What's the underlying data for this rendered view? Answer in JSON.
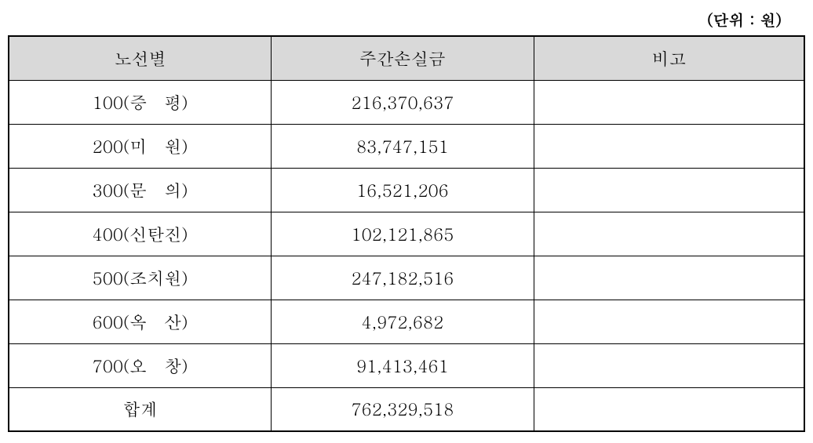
{
  "unit_label": "(단위 : 원)",
  "table": {
    "columns": [
      "노선별",
      "주간손실금",
      "비고"
    ],
    "header_bg": "#d9d9d9",
    "border_color": "#000000",
    "rows": [
      {
        "route": "100(증   평)",
        "loss": "216,370,637",
        "remark": ""
      },
      {
        "route": "200(미   원)",
        "loss": "83,747,151",
        "remark": ""
      },
      {
        "route": "300(문   의)",
        "loss": "16,521,206",
        "remark": ""
      },
      {
        "route": "400(신탄진)",
        "loss": "102,121,865",
        "remark": ""
      },
      {
        "route": "500(조치원)",
        "loss": "247,182,516",
        "remark": ""
      },
      {
        "route": "600(옥   산)",
        "loss": "4,972,682",
        "remark": ""
      },
      {
        "route": "700(오   창)",
        "loss": "91,413,461",
        "remark": ""
      },
      {
        "route": "합계",
        "loss": "762,329,518",
        "remark": ""
      }
    ]
  }
}
